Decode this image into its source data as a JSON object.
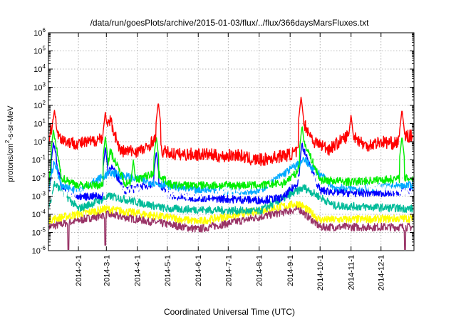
{
  "chart_data": {
    "type": "line",
    "title": "/data/run/goesPlots/archive/2015-01-03/flux/../flux/366daysMarsFluxes.txt",
    "xlabel": "Coordinated Universal Time (UTC)",
    "ylabel": {
      "base": "protons/cm",
      "sup": "2",
      "rest": "-s-sr-MeV"
    },
    "y_scale": "log",
    "ylim": [
      1e-06,
      1000000.0
    ],
    "xlim": [
      "2014-01-02",
      "2015-01-03"
    ],
    "y_ticks": [
      {
        "base": "10",
        "exp": "-6",
        "value": 1e-06
      },
      {
        "base": "10",
        "exp": "-5",
        "value": 1e-05
      },
      {
        "base": "10",
        "exp": "-4",
        "value": 0.0001
      },
      {
        "base": "10",
        "exp": "-3",
        "value": 0.001
      },
      {
        "base": "10",
        "exp": "-2",
        "value": 0.01
      },
      {
        "base": "10",
        "exp": "-1",
        "value": 0.1
      },
      {
        "base": "10",
        "exp": "0",
        "value": 1
      },
      {
        "base": "10",
        "exp": "1",
        "value": 10
      },
      {
        "base": "10",
        "exp": "2",
        "value": 100
      },
      {
        "base": "10",
        "exp": "3",
        "value": 1000
      },
      {
        "base": "10",
        "exp": "4",
        "value": 10000
      },
      {
        "base": "10",
        "exp": "5",
        "value": 100000
      },
      {
        "base": "10",
        "exp": "6",
        "value": 1000000
      }
    ],
    "x_ticks": [
      "2014-2-1",
      "2014-3-1",
      "2014-4-1",
      "2014-5-1",
      "2014-6-1",
      "2014-7-1",
      "2014-8-1",
      "2014-9-1",
      "2014-10-1",
      "2014-11-1",
      "2014-12-1"
    ],
    "x_tick_dates": [
      "2014-02-01",
      "2014-03-01",
      "2014-04-01",
      "2014-05-01",
      "2014-06-01",
      "2014-07-01",
      "2014-08-01",
      "2014-09-01",
      "2014-10-01",
      "2014-11-01",
      "2014-12-01"
    ],
    "grid": true,
    "legend": "none",
    "series": [
      {
        "color": "#ff0000",
        "base": 0.4,
        "x": [
          "2014-01-02",
          "2014-01-08",
          "2014-01-12",
          "2014-01-20",
          "2014-02-01",
          "2014-02-15",
          "2014-02-26",
          "2014-03-05",
          "2014-03-15",
          "2014-03-30",
          "2014-04-10",
          "2014-04-18",
          "2014-04-25",
          "2014-05-10",
          "2014-05-25",
          "2014-06-10",
          "2014-06-25",
          "2014-07-10",
          "2014-07-25",
          "2014-08-05",
          "2014-08-20",
          "2014-09-01",
          "2014-09-10",
          "2014-09-15",
          "2014-09-25",
          "2014-10-10",
          "2014-10-25",
          "2014-11-01",
          "2014-11-15",
          "2014-12-01",
          "2014-12-15",
          "2014-12-25",
          "2015-01-03"
        ],
        "y": [
          1.0,
          30,
          2.0,
          1.0,
          0.8,
          1.0,
          2.0,
          15,
          0.3,
          0.3,
          0.4,
          1.5,
          0.3,
          0.2,
          0.2,
          0.2,
          0.15,
          0.2,
          0.1,
          0.1,
          0.15,
          0.2,
          0.3,
          10,
          1.0,
          0.4,
          1.5,
          3.0,
          0.6,
          1.0,
          0.8,
          2.0,
          2.0
        ],
        "spikes": [
          [
            "2014-01-08",
            60
          ],
          [
            "2014-02-28",
            45
          ],
          [
            "2014-04-22",
            150
          ],
          [
            "2014-09-12",
            300
          ],
          [
            "2014-11-01",
            30
          ],
          [
            "2014-12-22",
            60
          ]
        ]
      },
      {
        "color": "#00ee00",
        "base": 0.003,
        "x": [
          "2014-01-02",
          "2014-01-08",
          "2014-01-15",
          "2014-02-01",
          "2014-02-26",
          "2014-03-05",
          "2014-03-20",
          "2014-04-20",
          "2014-05-05",
          "2014-06-01",
          "2014-07-01",
          "2014-08-01",
          "2014-08-25",
          "2014-09-08",
          "2014-09-15",
          "2014-10-01",
          "2014-11-01",
          "2014-12-01",
          "2015-01-03"
        ],
        "y": [
          0.004,
          2.0,
          0.01,
          0.004,
          0.004,
          0.3,
          0.005,
          0.02,
          0.004,
          0.004,
          0.004,
          0.004,
          0.005,
          0.02,
          1.0,
          0.008,
          0.006,
          0.008,
          0.01
        ],
        "spikes": [
          [
            "2014-01-07",
            5
          ],
          [
            "2014-02-28",
            2
          ],
          [
            "2014-03-28",
            0.1
          ],
          [
            "2014-04-20",
            2
          ],
          [
            "2014-09-13",
            8
          ],
          [
            "2014-12-22",
            2
          ]
        ]
      },
      {
        "color": "#0000ff",
        "base": 0.0007,
        "x": [
          "2014-01-02",
          "2014-01-08",
          "2014-01-15",
          "2014-02-01",
          "2014-02-26",
          "2014-03-05",
          "2014-03-20",
          "2014-04-20",
          "2014-05-05",
          "2014-06-01",
          "2014-07-01",
          "2014-08-01",
          "2014-08-25",
          "2014-09-08",
          "2014-09-15",
          "2014-10-01",
          "2014-11-01",
          "2014-12-01",
          "2015-01-03"
        ],
        "y": [
          0.001,
          0.5,
          0.003,
          0.001,
          0.001,
          0.05,
          0.002,
          0.005,
          0.001,
          0.0008,
          0.0007,
          0.0006,
          0.0008,
          0.005,
          0.3,
          0.002,
          0.0015,
          0.0015,
          0.002
        ],
        "spikes": [
          [
            "2014-01-07",
            1.0
          ],
          [
            "2014-02-28",
            0.5
          ],
          [
            "2014-04-20",
            0.3
          ],
          [
            "2014-09-13",
            1.0
          ]
        ]
      },
      {
        "color": "#00aaff",
        "base": 0.002,
        "x": [
          "2014-01-02",
          "2014-01-08",
          "2014-01-15",
          "2014-02-01",
          "2014-03-05",
          "2014-04-20",
          "2014-06-01",
          "2014-08-01",
          "2014-09-15",
          "2014-10-15",
          "2014-12-01",
          "2015-01-03"
        ],
        "y": [
          0.002,
          0.1,
          0.003,
          0.002,
          0.02,
          0.005,
          0.002,
          0.002,
          0.1,
          0.003,
          0.003,
          0.004
        ],
        "spikes": []
      },
      {
        "color": "#ffffff",
        "base": 0.001,
        "x": [
          "2014-01-02",
          "2014-03-05",
          "2014-06-01",
          "2014-09-15",
          "2015-01-03"
        ],
        "y": [
          0.001,
          0.003,
          0.001,
          0.01,
          0.0015
        ],
        "spikes": []
      },
      {
        "color": "#00bb99",
        "base": 0.0002,
        "x": [
          "2014-01-02",
          "2014-01-08",
          "2014-02-01",
          "2014-03-05",
          "2014-05-01",
          "2014-08-01",
          "2014-09-15",
          "2014-10-15",
          "2015-01-03"
        ],
        "y": [
          0.0002,
          0.005,
          0.0002,
          0.001,
          0.0002,
          0.00015,
          0.003,
          0.0003,
          0.0002
        ],
        "spikes": []
      },
      {
        "color": "#ffff00",
        "base": 5e-05,
        "x": [
          "2014-01-02",
          "2014-03-01",
          "2014-06-01",
          "2014-09-10",
          "2014-10-01",
          "2015-01-03"
        ],
        "y": [
          5e-05,
          0.0002,
          4e-05,
          0.0004,
          5e-05,
          6e-05
        ],
        "spikes": []
      },
      {
        "color": "#993366",
        "base": 1.5e-05,
        "x": [
          "2014-01-02",
          "2014-03-01",
          "2014-06-01",
          "2014-09-10",
          "2014-10-01",
          "2015-01-03"
        ],
        "y": [
          2e-05,
          0.0001,
          1.5e-05,
          0.0002,
          2e-05,
          2e-05
        ],
        "spikes": [],
        "dips": [
          [
            "2014-01-22",
            1e-06
          ],
          [
            "2014-02-28",
            2e-06
          ],
          [
            "2014-12-25",
            1e-06
          ]
        ]
      }
    ]
  }
}
